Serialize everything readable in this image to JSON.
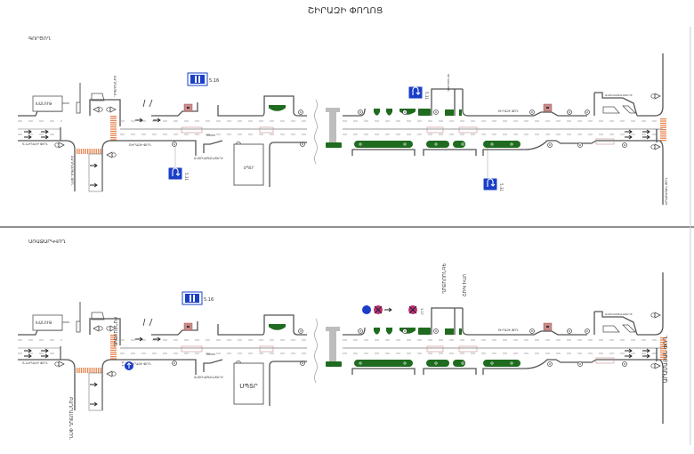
{
  "title": "ՇԻՐԱԶԻ ՓՈՂՈՑ",
  "colors": {
    "curb": "#555555",
    "lane": "#9a9a9a",
    "green": "#1f6b1f",
    "crosswalk": "#e8854f",
    "sign_blue": "#1a3fc7",
    "sign_red": "#c0306a",
    "pillar": "#bdbdbd",
    "bus_stop": "#c98a8a"
  },
  "panels": [
    {
      "heading": "ԳՈՐԾՈՂ",
      "labels": {
        "shop": "ԽԱՆՈՒԹ",
        "left_street": "Գ.ՆԺԴԵՀԻ ՓՈՂ.",
        "cross_street": "ԲԱՂՐԱՄՅԱՆ ՓՈՂ.",
        "corner_street": "ԲԱՂՐԱՄՅԱՆ",
        "main_street_left": "ՇԻՐԱԶԻ ՓՈՂ.",
        "parking": "ԱՎՏՈԿԱՅԱՆԱՏԵՂԻ",
        "building": "ՍՊՏՐ",
        "main_street_right": "ՇԻՐԱԶԻ ՓՈՂ.",
        "right_building": "ԱՎՏՈԿԱՅԱՆԱՏԵՂԻ",
        "right_street": "ԱՐԱՄԱՅԱՆ ՓՈՂ.",
        "mid_street": "ԳԵՂԱՄԱՅԱՆ"
      }
    },
    {
      "heading": "ԱՌԱՋԱՐԿՎՈՂ",
      "labels": {
        "shop": "ԽԱՆՈՒԹ",
        "left_street": "Գ.ՆԺԴԵՀԻ ՓՈՂ.",
        "cross_street": "ԲԱՂՐԱՄՅԱՆ ՓՈՂ.",
        "corner_street": "ԲԱՂՐԱՄՅԱՆ",
        "main_street_left": "ՇԻՐԱԶԻ ՓՈՂ.",
        "parking": "ԱՎՏՈԿԱՅԱՆԱՏԵՂԻ",
        "building": "ՍՊՏՐ",
        "main_street_right": "ՇԻՐԱԶԻ ՓՈՂ.",
        "right_building": "ԱՎՏՈԿԱՅԱՆԱՏԵՂԻ",
        "right_street": "ԱՐԱՄԱՅԱՆ ՓՈՂ.",
        "mid_street": "ԳԵՂԱՄԱՅԱՆ",
        "mid_street_2": "ՄՈՎ ԽԱՉ"
      }
    }
  ],
  "signs": {
    "bus_stop": "5.16",
    "u_turn": "5.31",
    "no_stopping": "3.27",
    "direction": "4.1"
  }
}
